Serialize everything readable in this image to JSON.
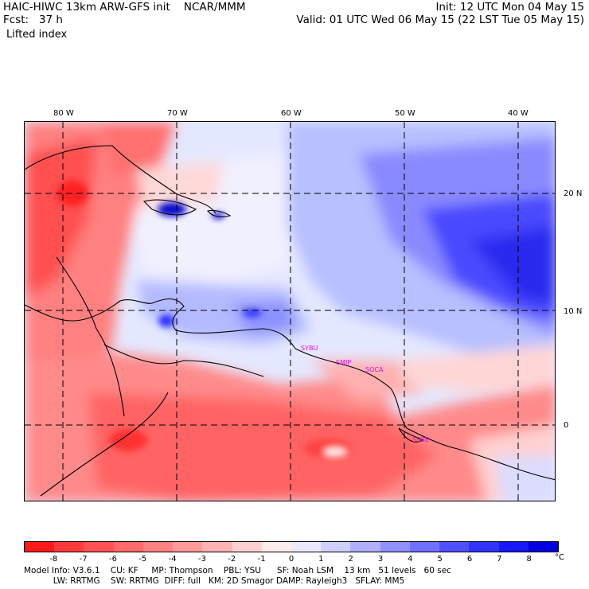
{
  "header": {
    "line1_left": "HAIC-HIWC 13km ARW-GFS init    NCAR/MMM",
    "line1_right": "Init: 12 UTC Mon 04 May 15",
    "line2_left": "Fcst:   37 h",
    "line2_right": "Valid: 01 UTC Wed 06 May 15 (22 LST Tue 05 May 15)",
    "field": "Lifted index"
  },
  "map": {
    "lon_labels": [
      "80 W",
      "70 W",
      "60 W",
      "50 W",
      "40 W"
    ],
    "lat_labels": [
      "20 N",
      "10 N",
      "0"
    ],
    "stations": [
      "SYBU",
      "SMJP",
      "SOCA",
      "SBBE"
    ]
  },
  "colorbar": {
    "unit": "°C",
    "ticks": [
      "-8",
      "-7",
      "-6",
      "-5",
      "-4",
      "-3",
      "-2",
      "-1",
      "0",
      "1",
      "2",
      "3",
      "4",
      "5",
      "6",
      "7",
      "8"
    ],
    "colors": [
      "#ff1a1a",
      "#ff3a3a",
      "#ff5252",
      "#ff6a6a",
      "#ff8282",
      "#ff9a9a",
      "#ffb4b4",
      "#ffd0d0",
      "#ffecec",
      "#eaeaff",
      "#d0d0ff",
      "#b0b0ff",
      "#9090ff",
      "#7070ff",
      "#5050ff",
      "#3232ff",
      "#1818ff",
      "#0000e0"
    ]
  },
  "footer": {
    "line1": "Model Info: V3.6.1    CU: KF     MP: Thompson    PBL: YSU      SF: Noah LSM    13 km   51 levels   60 sec",
    "line2": "           LW: RRTMG    SW: RRTMG  DIFF: full   KM: 2D Smagor DAMP: Rayleigh3   SFLAY: MM5"
  }
}
